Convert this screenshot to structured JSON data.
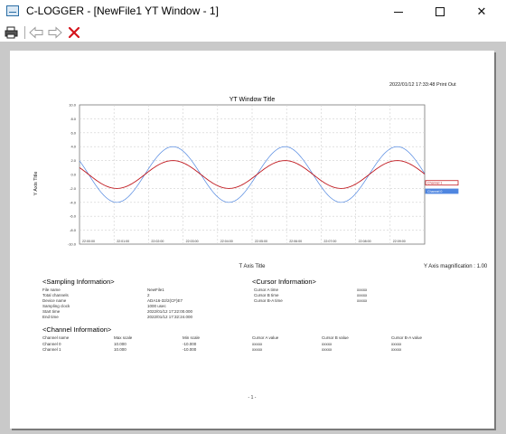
{
  "window": {
    "title": "C-LOGGER - [NewFile1 YT Window - 1]",
    "minimize_label": "",
    "close_label": "✕"
  },
  "toolbar": {
    "print_icon": "printer-icon",
    "back_icon": "arrow-left-icon",
    "forward_icon": "arrow-right-icon",
    "close_icon": "red-x-icon"
  },
  "page": {
    "print_date": "2022/01/12 17:33:48 Print Out",
    "number": "- 1 -"
  },
  "chart_data": {
    "type": "line",
    "title": "YT Window Title",
    "xlabel": "T Axis Title",
    "ylabel": "Y Axis Title",
    "magnification": "Y Axis magnification : 1.00",
    "yticks": [
      "10.0",
      "8.0",
      "6.0",
      "4.0",
      "2.0",
      "0.0",
      "-2.0",
      "-4.0",
      "-6.0",
      "-8.0",
      "-10.0"
    ],
    "ylim": [
      -10,
      10
    ],
    "xticks": [
      "22:00:00",
      "22:01:00",
      "22:02:00",
      "22:03:00",
      "22:04:00",
      "22:05:00",
      "22:06:00",
      "22:07:00",
      "22:08:00",
      "22:09:00"
    ],
    "grid": true,
    "series": [
      {
        "name": "Channel 0",
        "amplitude": 4.0,
        "offset": 0.0,
        "phase": 0.0,
        "period_s": 195,
        "color": "#4f86e0"
      },
      {
        "name": "Channel 1",
        "amplitude": 2.0,
        "offset": 0.0,
        "phase": 0.0,
        "period_s": 195,
        "color": "#c0181e"
      }
    ],
    "markers": [
      {
        "label": "Channel 1",
        "y": -1.2,
        "color": "#c0181e",
        "style": "outline"
      },
      {
        "label": "Channel 0",
        "y": -2.4,
        "color": "#4f86e0",
        "style": "filled"
      }
    ]
  },
  "sampling": {
    "title": "<Sampling Information>",
    "rows": [
      {
        "label": "File name",
        "value": "NewFile1"
      },
      {
        "label": "Total channels",
        "value": "2"
      },
      {
        "label": "Device name",
        "value": "ADA16-32/2(CF)E7"
      },
      {
        "label": "Sampling clock",
        "value": "1000 usec"
      },
      {
        "label": "Start time",
        "value": "2022/01/12 17:22:00.000"
      },
      {
        "label": "End time",
        "value": "2022/01/12 17:32:24.000"
      }
    ]
  },
  "cursor": {
    "title": "<Cursor Information>",
    "rows": [
      {
        "label": "Cursor A time",
        "value": "xxxxx"
      },
      {
        "label": "Cursor B time",
        "value": "xxxxx"
      },
      {
        "label": "Cursor B-A time",
        "value": "xxxxx"
      }
    ]
  },
  "channel": {
    "title": "<Channel Information>",
    "headers": [
      "Channel name",
      "Max scale",
      "Min scale",
      "Cursor A value",
      "Cursor B value",
      "Cursor B-A value"
    ],
    "rows": [
      [
        "Channel 0",
        "10.000",
        "-10.000",
        "xxxxx",
        "xxxxx",
        "xxxxx"
      ],
      [
        "Channel 1",
        "10.000",
        "-10.000",
        "xxxxx",
        "xxxxx",
        "xxxxx"
      ]
    ]
  }
}
